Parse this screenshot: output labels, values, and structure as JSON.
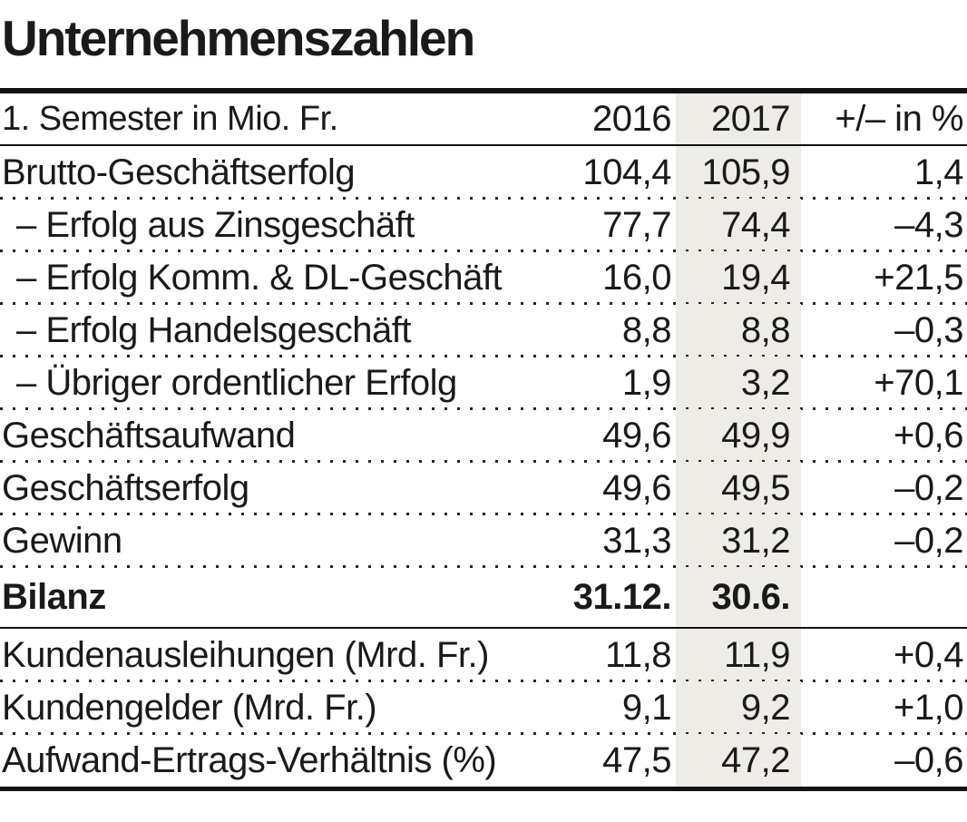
{
  "title": "Unternehmenszahlen",
  "colors": {
    "highlight_band": "#eeece6",
    "rule": "#121212",
    "text": "#1a1a1a"
  },
  "chart_data": {
    "type": "table",
    "title": "Unternehmenszahlen",
    "highlight_column": "2017",
    "header": {
      "label": "1. Semester in Mio. Fr.",
      "col2016": "2016",
      "col2017": "2017",
      "pct": "+/– in %"
    },
    "rows": [
      {
        "label": "Brutto-Geschäftserfolg",
        "v2016": "104,4",
        "v2017": "105,9",
        "pct": "1,4",
        "indent": false,
        "bold": false,
        "sep": "dotted"
      },
      {
        "label": "– Erfolg aus Zinsgeschäft",
        "v2016": "77,7",
        "v2017": "74,4",
        "pct": "–4,3",
        "indent": true,
        "bold": false,
        "sep": "dotted"
      },
      {
        "label": "– Erfolg Komm. & DL-Geschäft",
        "v2016": "16,0",
        "v2017": "19,4",
        "pct": "+21,5",
        "indent": true,
        "bold": false,
        "sep": "dotted"
      },
      {
        "label": "– Erfolg Handelsgeschäft",
        "v2016": "8,8",
        "v2017": "8,8",
        "pct": "–0,3",
        "indent": true,
        "bold": false,
        "sep": "dotted"
      },
      {
        "label": "– Übriger ordentlicher Erfolg",
        "v2016": "1,9",
        "v2017": "3,2",
        "pct": "+70,1",
        "indent": true,
        "bold": false,
        "sep": "dotted"
      },
      {
        "label": "Geschäftsaufwand",
        "v2016": "49,6",
        "v2017": "49,9",
        "pct": "+0,6",
        "indent": false,
        "bold": false,
        "sep": "dotted"
      },
      {
        "label": "Geschäftserfolg",
        "v2016": "49,6",
        "v2017": "49,5",
        "pct": "–0,2",
        "indent": false,
        "bold": false,
        "sep": "dotted"
      },
      {
        "label": "Gewinn",
        "v2016": "31,3",
        "v2017": "31,2",
        "pct": "–0,2",
        "indent": false,
        "bold": false,
        "sep": "dotted"
      },
      {
        "label": "Bilanz",
        "v2016": "31.12.",
        "v2017": "30.6.",
        "pct": "",
        "indent": false,
        "bold": true,
        "section": true,
        "sep": "solid"
      },
      {
        "label": "Kundenausleihungen (Mrd. Fr.)",
        "v2016": "11,8",
        "v2017": "11,9",
        "pct": "+0,4",
        "indent": false,
        "bold": false,
        "sep": "dotted"
      },
      {
        "label": "Kundengelder (Mrd. Fr.)",
        "v2016": "9,1",
        "v2017": "9,2",
        "pct": "+1,0",
        "indent": false,
        "bold": false,
        "sep": "dotted"
      },
      {
        "label": "Aufwand-Ertrags-Verhältnis (%)",
        "v2016": "47,5",
        "v2017": "47,2",
        "pct": "–0,6",
        "indent": false,
        "bold": false,
        "sep": "none"
      }
    ]
  }
}
